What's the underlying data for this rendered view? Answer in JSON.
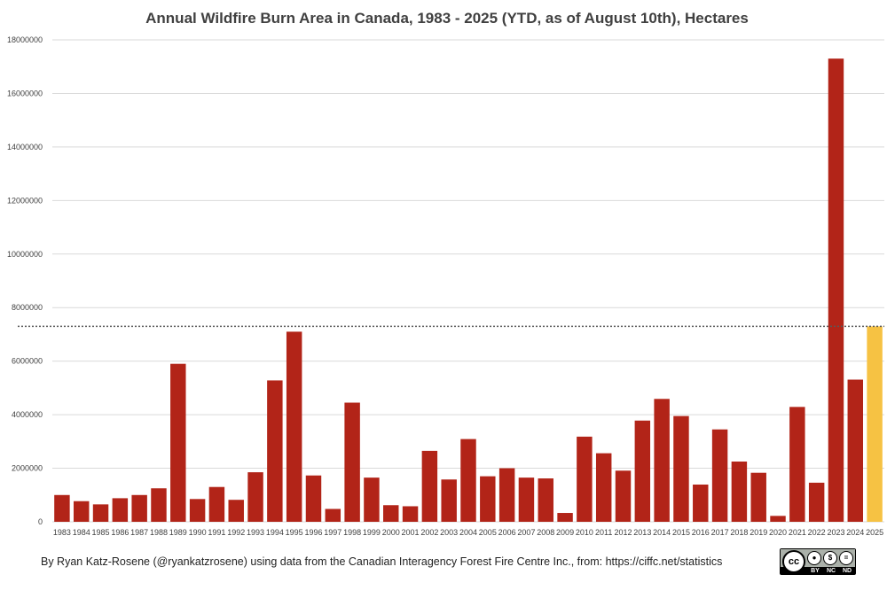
{
  "chart_data": {
    "type": "bar",
    "title": "Annual Wildfire Burn Area in Canada, 1983 - 2025 (YTD, as of August 10th), Hectares",
    "xlabel": "",
    "ylabel": "",
    "ylim": [
      0,
      18000000
    ],
    "yticks": [
      "0",
      "2000000",
      "4000000",
      "6000000",
      "8000000",
      "10000000",
      "12000000",
      "14000000",
      "16000000",
      "18000000"
    ],
    "categories": [
      "1983",
      "1984",
      "1985",
      "1986",
      "1987",
      "1988",
      "1989",
      "1990",
      "1991",
      "1992",
      "1993",
      "1994",
      "1995",
      "1996",
      "1997",
      "1998",
      "1999",
      "2000",
      "2001",
      "2002",
      "2003",
      "2004",
      "2005",
      "2006",
      "2007",
      "2008",
      "2009",
      "2010",
      "2011",
      "2012",
      "2013",
      "2014",
      "2015",
      "2016",
      "2017",
      "2018",
      "2019",
      "2020",
      "2021",
      "2022",
      "2023",
      "2024",
      "2025"
    ],
    "values": [
      1000000,
      770000,
      650000,
      880000,
      1000000,
      1250000,
      5900000,
      850000,
      1300000,
      820000,
      1850000,
      5280000,
      7100000,
      1730000,
      480000,
      4450000,
      1650000,
      620000,
      580000,
      2650000,
      1580000,
      3090000,
      1700000,
      2000000,
      1650000,
      1620000,
      330000,
      3180000,
      2560000,
      1910000,
      3780000,
      4590000,
      3950000,
      1390000,
      3450000,
      2250000,
      1830000,
      220000,
      4290000,
      1460000,
      17300000,
      5310000,
      7300000
    ],
    "colors": {
      "default": "#b22418",
      "highlight": "#f6c243",
      "reference_line": "#595959"
    },
    "highlight_category": "2025",
    "reference_line_value": 7300000,
    "grid": true,
    "legend": "none"
  },
  "footer": {
    "attribution": "By Ryan Katz-Rosene (@ryankatzrosene) using data from the Canadian Interagency Forest Fire Centre Inc., from: https://ciffc.net/statistics",
    "license": {
      "cc": "cc",
      "by": "BY",
      "nc": "NC",
      "nd": "ND"
    }
  }
}
